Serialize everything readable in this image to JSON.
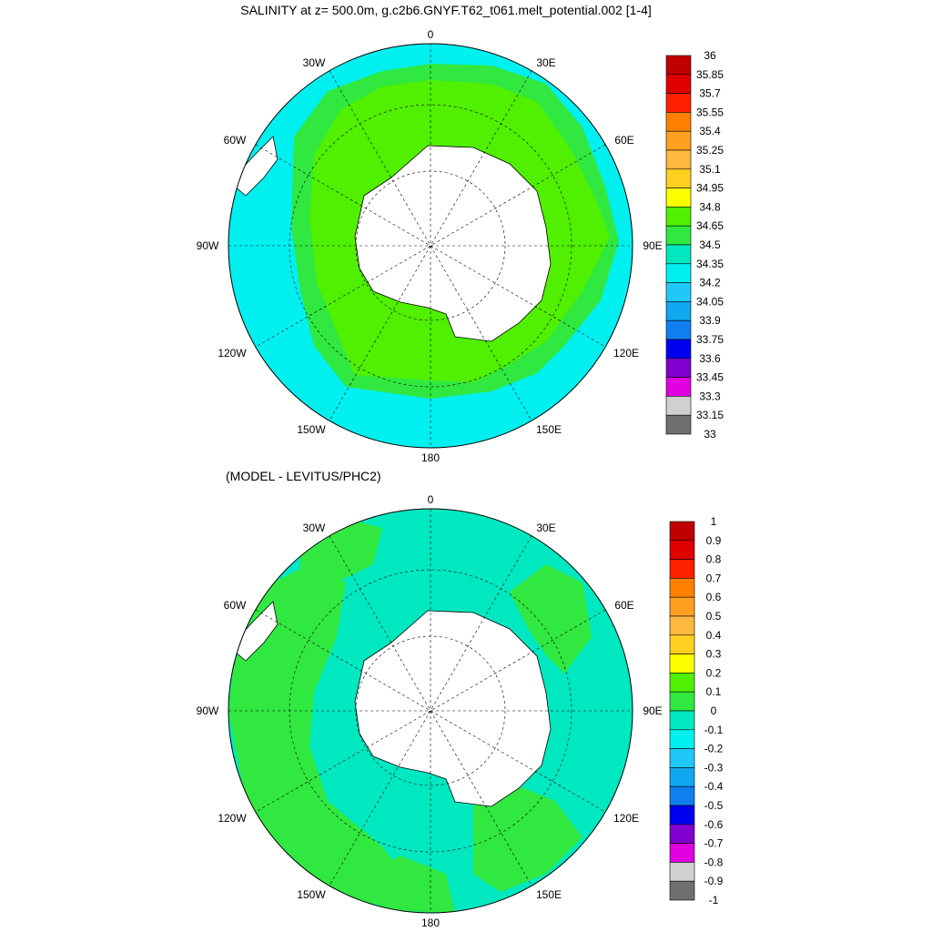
{
  "top": {
    "title": "SALINITY at z= 500.0m, g.c2b6.GNYF.T62_t061.melt_potential.002 [1-4]",
    "lon_labels": {
      "top": "0",
      "upper_left": "30W",
      "upper_right": "30E",
      "mid_upper_left": "60W",
      "mid_upper_right": "60E",
      "left": "90W",
      "right": "90E",
      "lower_left": "120W",
      "lower_right": "120E",
      "bottom_left": "150W",
      "bottom_right": "150E",
      "bottom": "180"
    },
    "colorbar": {
      "labels": [
        "36",
        "35.85",
        "35.7",
        "35.55",
        "35.4",
        "35.25",
        "35.1",
        "34.95",
        "34.8",
        "34.65",
        "34.5",
        "34.35",
        "34.2",
        "34.05",
        "33.9",
        "33.75",
        "33.6",
        "33.45",
        "33.3",
        "33.15",
        "33"
      ],
      "colors": [
        "#c00000",
        "#e00000",
        "#ff2000",
        "#ff8000",
        "#ffa020",
        "#ffb840",
        "#ffd020",
        "#ffff00",
        "#50f000",
        "#30e840",
        "#00e8c0",
        "#00f0f0",
        "#20c8f8",
        "#10a8f0",
        "#1080f0",
        "#0000f0",
        "#8000d0",
        "#e000e0",
        "#d0d0d0",
        "#707070"
      ]
    }
  },
  "bottom": {
    "title": "(MODEL - LEVITUS/PHC2)",
    "lon_labels": {
      "top": "0",
      "upper_left": "30W",
      "upper_right": "30E",
      "mid_upper_left": "60W",
      "mid_upper_right": "60E",
      "left": "90W",
      "right": "90E",
      "lower_left": "120W",
      "lower_right": "120E",
      "bottom_left": "150W",
      "bottom_right": "150E",
      "bottom": "180"
    },
    "colorbar": {
      "labels": [
        "1",
        "0.9",
        "0.8",
        "0.7",
        "0.6",
        "0.5",
        "0.4",
        "0.3",
        "0.2",
        "0.1",
        "0",
        "-0.1",
        "-0.2",
        "-0.3",
        "-0.4",
        "-0.5",
        "-0.6",
        "-0.7",
        "-0.8",
        "-0.9",
        "-1"
      ],
      "colors": [
        "#c00000",
        "#e00000",
        "#ff2000",
        "#ff8000",
        "#ffa020",
        "#ffb840",
        "#ffd020",
        "#ffff00",
        "#50f000",
        "#30e840",
        "#00e8c0",
        "#00f0f0",
        "#20c8f8",
        "#10a8f0",
        "#1080f0",
        "#0000f0",
        "#8000d0",
        "#e000e0",
        "#d0d0d0",
        "#707070"
      ]
    }
  },
  "colors": {
    "land": "#ffffff",
    "outline": "#000000"
  }
}
